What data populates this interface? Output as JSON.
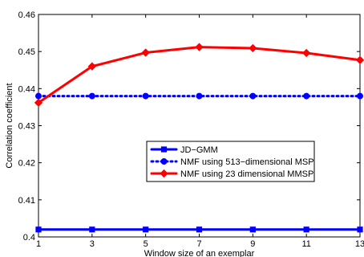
{
  "chart_data": {
    "type": "line",
    "x": [
      1,
      3,
      5,
      7,
      9,
      11,
      13
    ],
    "xlabel": "Window size of an exemplar",
    "ylabel": "Correlation coefficient",
    "xlim": [
      1,
      13
    ],
    "ylim": [
      0.4,
      0.46
    ],
    "xticks": [
      1,
      3,
      5,
      7,
      9,
      11,
      13
    ],
    "yticks": [
      0.4,
      0.41,
      0.42,
      0.43,
      0.44,
      0.45,
      0.46
    ],
    "ytick_labels": [
      "0.4",
      "0.41",
      "0.42",
      "0.43",
      "0.44",
      "0.45",
      "0.46"
    ],
    "grid": false,
    "legend_position": "center-right",
    "series": [
      {
        "name": "JD−GMM",
        "values": [
          0.402,
          0.402,
          0.402,
          0.402,
          0.402,
          0.402,
          0.402
        ],
        "color": "#0000ff",
        "marker": "square",
        "line_style": "solid"
      },
      {
        "name": "NMF using 513−dimensional MSP",
        "values": [
          0.438,
          0.438,
          0.438,
          0.438,
          0.438,
          0.438,
          0.438
        ],
        "color": "#0000ff",
        "marker": "circle",
        "line_style": "dotted"
      },
      {
        "name": "NMF using 23 dimensional MMSP",
        "values": [
          0.4362,
          0.446,
          0.4497,
          0.4512,
          0.4509,
          0.4496,
          0.4477
        ],
        "color": "#ff0000",
        "marker": "diamond",
        "line_style": "solid"
      }
    ]
  }
}
